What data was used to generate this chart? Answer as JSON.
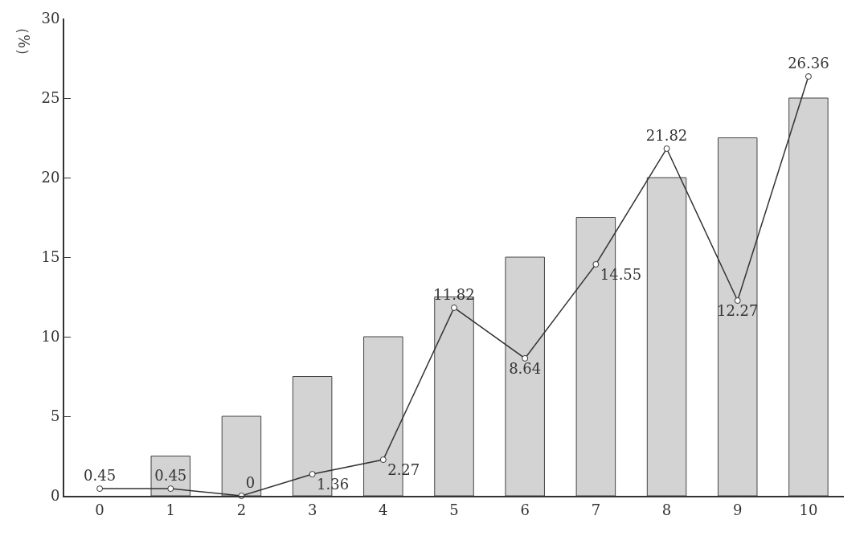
{
  "chart_data": {
    "type": "bar",
    "ylabel": "（%）",
    "categories": [
      "0",
      "1",
      "2",
      "3",
      "4",
      "5",
      "6",
      "7",
      "8",
      "9",
      "10"
    ],
    "series": [
      {
        "color": "#d3d3d3",
        "values": [
          0,
          2.5,
          5,
          7.5,
          10,
          12.5,
          15,
          17.5,
          20,
          22.5,
          25
        ]
      },
      {
        "type": "line",
        "color": "#333333",
        "marker": "circle",
        "values": [
          0.45,
          0.45,
          0,
          1.36,
          2.27,
          11.82,
          8.64,
          14.55,
          21.82,
          12.27,
          26.36
        ],
        "value_labels": [
          "0.45",
          "0.45",
          "0",
          "1.36",
          "2.27",
          "11.82",
          "8.64",
          "14.55",
          "21.82",
          "12.27",
          "26.36"
        ]
      }
    ],
    "ylim": [
      0,
      30
    ],
    "yticks": [
      0,
      5,
      10,
      15,
      20,
      25,
      30
    ]
  }
}
